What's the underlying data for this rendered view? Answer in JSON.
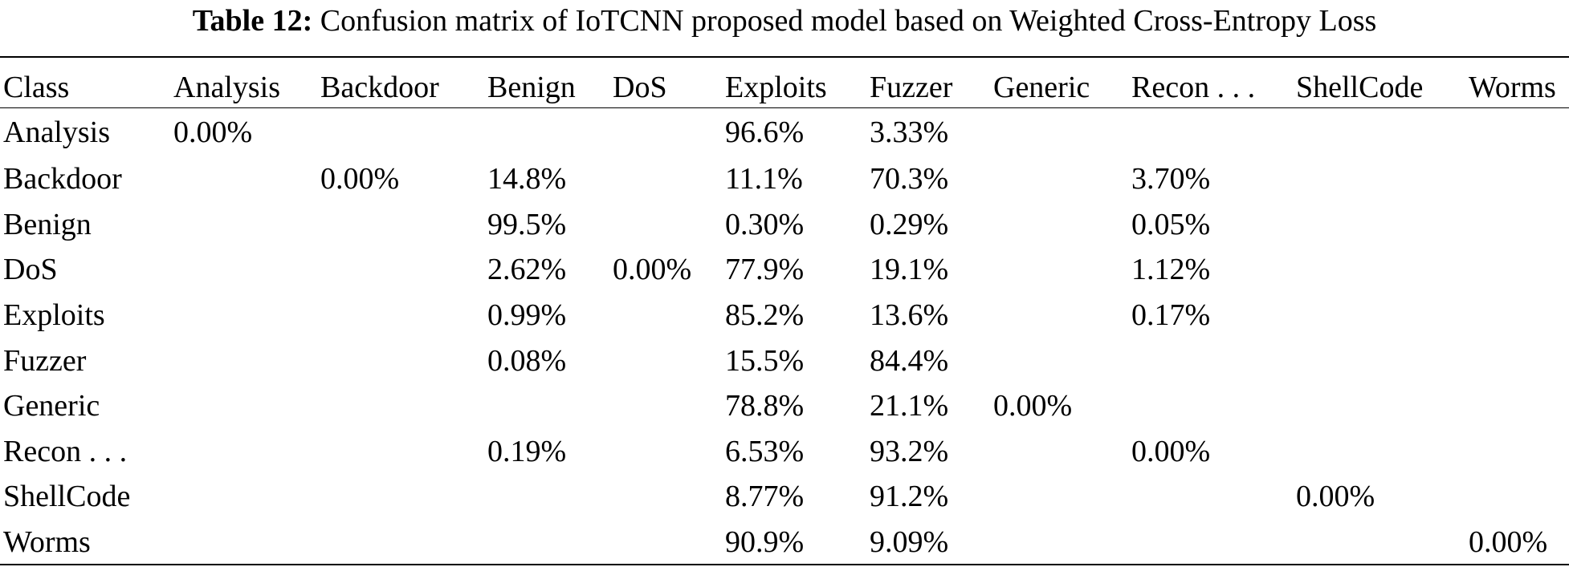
{
  "caption": {
    "label": "Table 12:",
    "text": "Confusion matrix of IoTCNN proposed model based on Weighted Cross-Entropy Loss"
  },
  "table": {
    "headers": [
      "Class",
      "Analysis",
      "Backdoor",
      "Benign",
      "DoS",
      "Exploits",
      "Fuzzer",
      "Generic",
      "Recon . . .",
      "ShellCode",
      "Worms"
    ],
    "rows": [
      [
        "Analysis",
        "0.00%",
        "",
        "",
        "",
        "96.6%",
        "3.33%",
        "",
        "",
        "",
        ""
      ],
      [
        "Backdoor",
        "",
        "0.00%",
        "14.8%",
        "",
        "11.1%",
        "70.3%",
        "",
        "3.70%",
        "",
        ""
      ],
      [
        "Benign",
        "",
        "",
        "99.5%",
        "",
        "0.30%",
        "0.29%",
        "",
        "0.05%",
        "",
        ""
      ],
      [
        "DoS",
        "",
        "",
        "2.62%",
        "0.00%",
        "77.9%",
        "19.1%",
        "",
        "1.12%",
        "",
        ""
      ],
      [
        "Exploits",
        "",
        "",
        "0.99%",
        "",
        "85.2%",
        "13.6%",
        "",
        "0.17%",
        "",
        ""
      ],
      [
        "Fuzzer",
        "",
        "",
        "0.08%",
        "",
        "15.5%",
        "84.4%",
        "",
        "",
        "",
        ""
      ],
      [
        "Generic",
        "",
        "",
        "",
        "",
        "78.8%",
        "21.1%",
        "0.00%",
        "",
        "",
        ""
      ],
      [
        "Recon . . .",
        "",
        "",
        "0.19%",
        "",
        "6.53%",
        "93.2%",
        "",
        "0.00%",
        "",
        ""
      ],
      [
        "ShellCode",
        "",
        "",
        "",
        "",
        "8.77%",
        "91.2%",
        "",
        "",
        "0.00%",
        ""
      ],
      [
        "Worms",
        "",
        "",
        "",
        "",
        "90.9%",
        "9.09%",
        "",
        "",
        "",
        "0.00%"
      ]
    ]
  }
}
